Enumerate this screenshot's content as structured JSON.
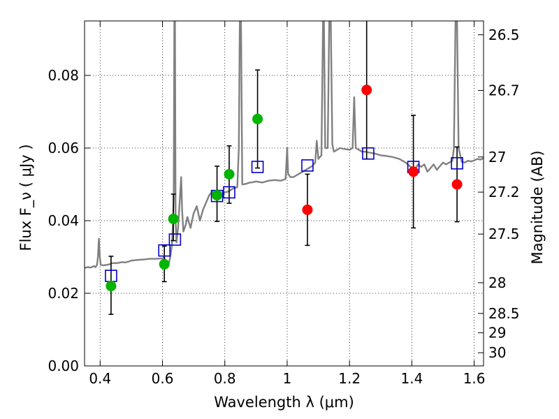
{
  "chart_data": {
    "type": "scatter",
    "xlabel": "Wavelength  λ (μm)",
    "ylabel": "Flux  F_ν  ( μJy )",
    "y2label": "Magnitude (AB)",
    "xlim": [
      0.35,
      1.63
    ],
    "ylim": [
      0.0,
      0.095
    ],
    "x_ticks": [
      "0.4",
      "0.6",
      "0.8",
      "1",
      "1.2",
      "1.4",
      "1.6"
    ],
    "y_ticks": [
      "0.00",
      "0.02",
      "0.04",
      "0.06",
      "0.08"
    ],
    "y2_ticks": [
      "26.5",
      "26.7",
      "27",
      "27.2",
      "27.5",
      "28",
      "28.5",
      "29",
      "30"
    ],
    "grid": true,
    "colors": {
      "model_spectrum": "#808080",
      "green_points": "#00b400",
      "red_points": "#ff0000",
      "model_photometry": "#0000cc",
      "error_bars": "#000000"
    },
    "observed_green": [
      {
        "x": 0.435,
        "y": 0.022,
        "err_lo": 0.0078,
        "err_hi": 0.0082
      },
      {
        "x": 0.606,
        "y": 0.028,
        "err_lo": 0.0048,
        "err_hi": 0.005
      },
      {
        "x": 0.635,
        "y": 0.0405,
        "err_lo": 0.006,
        "err_hi": 0.0068
      },
      {
        "x": 0.775,
        "y": 0.047,
        "err_lo": 0.0072,
        "err_hi": 0.008
      },
      {
        "x": 0.814,
        "y": 0.0528,
        "err_lo": 0.008,
        "err_hi": 0.0078
      },
      {
        "x": 0.905,
        "y": 0.068,
        "err_lo": 0.0135,
        "err_hi": 0.0135
      }
    ],
    "observed_red": [
      {
        "x": 1.065,
        "y": 0.043,
        "err_lo": 0.0098,
        "err_hi": 0.0098
      },
      {
        "x": 1.255,
        "y": 0.076,
        "err_lo": 0.019,
        "err_hi": 0.021
      },
      {
        "x": 1.405,
        "y": 0.0535,
        "err_lo": 0.0155,
        "err_hi": 0.0155
      },
      {
        "x": 1.545,
        "y": 0.05,
        "err_lo": 0.0103,
        "err_hi": 0.0103
      }
    ],
    "model_photometry": [
      {
        "x": 0.435,
        "y": 0.0248
      },
      {
        "x": 0.606,
        "y": 0.0318
      },
      {
        "x": 0.64,
        "y": 0.0348
      },
      {
        "x": 0.775,
        "y": 0.0468
      },
      {
        "x": 0.814,
        "y": 0.0478
      },
      {
        "x": 0.905,
        "y": 0.0548
      },
      {
        "x": 1.065,
        "y": 0.0552
      },
      {
        "x": 1.26,
        "y": 0.0585
      },
      {
        "x": 1.405,
        "y": 0.0548
      },
      {
        "x": 1.545,
        "y": 0.0558
      }
    ],
    "model_spectrum": [
      [
        0.35,
        0.027
      ],
      [
        0.36,
        0.0272
      ],
      [
        0.37,
        0.0271
      ],
      [
        0.38,
        0.0275
      ],
      [
        0.385,
        0.0272
      ],
      [
        0.39,
        0.0278
      ],
      [
        0.393,
        0.03
      ],
      [
        0.396,
        0.035
      ],
      [
        0.399,
        0.03
      ],
      [
        0.402,
        0.0278
      ],
      [
        0.41,
        0.0277
      ],
      [
        0.42,
        0.0278
      ],
      [
        0.43,
        0.028
      ],
      [
        0.44,
        0.0283
      ],
      [
        0.45,
        0.0283
      ],
      [
        0.46,
        0.0284
      ],
      [
        0.47,
        0.0286
      ],
      [
        0.48,
        0.0285
      ],
      [
        0.49,
        0.0287
      ],
      [
        0.5,
        0.029
      ],
      [
        0.52,
        0.0292
      ],
      [
        0.54,
        0.0293
      ],
      [
        0.56,
        0.0295
      ],
      [
        0.58,
        0.0295
      ],
      [
        0.6,
        0.0296
      ],
      [
        0.605,
        0.0299
      ],
      [
        0.61,
        0.029
      ],
      [
        0.62,
        0.028
      ],
      [
        0.625,
        0.03
      ],
      [
        0.63,
        0.033
      ],
      [
        0.633,
        0.038
      ],
      [
        0.636,
        0.046
      ],
      [
        0.638,
        0.095
      ],
      [
        0.64,
        0.095
      ],
      [
        0.642,
        0.04
      ],
      [
        0.645,
        0.034
      ],
      [
        0.65,
        0.038
      ],
      [
        0.655,
        0.045
      ],
      [
        0.66,
        0.052
      ],
      [
        0.663,
        0.043
      ],
      [
        0.667,
        0.037
      ],
      [
        0.675,
        0.039
      ],
      [
        0.68,
        0.041
      ],
      [
        0.69,
        0.038
      ],
      [
        0.7,
        0.042
      ],
      [
        0.71,
        0.044
      ],
      [
        0.72,
        0.04
      ],
      [
        0.73,
        0.043
      ],
      [
        0.74,
        0.045
      ],
      [
        0.75,
        0.047
      ],
      [
        0.76,
        0.048
      ],
      [
        0.77,
        0.0465
      ],
      [
        0.78,
        0.047
      ],
      [
        0.79,
        0.0472
      ],
      [
        0.8,
        0.0478
      ],
      [
        0.81,
        0.048
      ],
      [
        0.82,
        0.0485
      ],
      [
        0.83,
        0.049
      ],
      [
        0.84,
        0.0492
      ],
      [
        0.845,
        0.06
      ],
      [
        0.848,
        0.095
      ],
      [
        0.852,
        0.095
      ],
      [
        0.856,
        0.05
      ],
      [
        0.86,
        0.05
      ],
      [
        0.87,
        0.0502
      ],
      [
        0.88,
        0.0505
      ],
      [
        0.89,
        0.0506
      ],
      [
        0.9,
        0.0508
      ],
      [
        0.92,
        0.0505
      ],
      [
        0.94,
        0.051
      ],
      [
        0.96,
        0.0512
      ],
      [
        0.98,
        0.051
      ],
      [
        0.995,
        0.0515
      ],
      [
        1.0,
        0.06
      ],
      [
        1.003,
        0.053
      ],
      [
        1.01,
        0.052
      ],
      [
        1.02,
        0.052
      ],
      [
        1.03,
        0.0525
      ],
      [
        1.04,
        0.053
      ],
      [
        1.05,
        0.0535
      ],
      [
        1.06,
        0.054
      ],
      [
        1.07,
        0.0545
      ],
      [
        1.08,
        0.055
      ],
      [
        1.09,
        0.056
      ],
      [
        1.095,
        0.062
      ],
      [
        1.1,
        0.057
      ],
      [
        1.11,
        0.058
      ],
      [
        1.115,
        0.095
      ],
      [
        1.118,
        0.095
      ],
      [
        1.122,
        0.06
      ],
      [
        1.13,
        0.06
      ],
      [
        1.135,
        0.095
      ],
      [
        1.14,
        0.095
      ],
      [
        1.145,
        0.061
      ],
      [
        1.15,
        0.059
      ],
      [
        1.16,
        0.0595
      ],
      [
        1.17,
        0.06
      ],
      [
        1.18,
        0.0598
      ],
      [
        1.2,
        0.0595
      ],
      [
        1.21,
        0.06
      ],
      [
        1.215,
        0.074
      ],
      [
        1.22,
        0.06
      ],
      [
        1.23,
        0.0595
      ],
      [
        1.24,
        0.059
      ],
      [
        1.25,
        0.059
      ],
      [
        1.26,
        0.0588
      ],
      [
        1.28,
        0.0585
      ],
      [
        1.3,
        0.058
      ],
      [
        1.32,
        0.0578
      ],
      [
        1.34,
        0.0575
      ],
      [
        1.36,
        0.057
      ],
      [
        1.38,
        0.056
      ],
      [
        1.4,
        0.0545
      ],
      [
        1.41,
        0.054
      ],
      [
        1.42,
        0.0555
      ],
      [
        1.43,
        0.0548
      ],
      [
        1.44,
        0.0555
      ],
      [
        1.45,
        0.0535
      ],
      [
        1.46,
        0.0545
      ],
      [
        1.47,
        0.0555
      ],
      [
        1.48,
        0.054
      ],
      [
        1.49,
        0.055
      ],
      [
        1.5,
        0.056
      ],
      [
        1.51,
        0.0555
      ],
      [
        1.52,
        0.056
      ],
      [
        1.53,
        0.0565
      ],
      [
        1.535,
        0.06
      ],
      [
        1.54,
        0.095
      ],
      [
        1.545,
        0.095
      ],
      [
        1.55,
        0.06
      ],
      [
        1.56,
        0.0562
      ],
      [
        1.57,
        0.056
      ],
      [
        1.58,
        0.0565
      ],
      [
        1.59,
        0.0563
      ],
      [
        1.6,
        0.0566
      ],
      [
        1.61,
        0.057
      ],
      [
        1.62,
        0.0568
      ],
      [
        1.63,
        0.0572
      ]
    ]
  }
}
